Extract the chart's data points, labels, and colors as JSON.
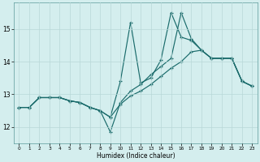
{
  "title": "",
  "xlabel": "Humidex (Indice chaleur)",
  "bg_color": "#d4eeee",
  "line_color": "#1a6b6b",
  "grid_color": "#b8d8d8",
  "x_ticks": [
    0,
    1,
    2,
    3,
    4,
    5,
    6,
    7,
    8,
    9,
    10,
    11,
    12,
    13,
    14,
    15,
    16,
    17,
    18,
    19,
    20,
    21,
    22,
    23
  ],
  "y_ticks": [
    12,
    13,
    14,
    15
  ],
  "xlim": [
    -0.5,
    23.5
  ],
  "ylim": [
    11.5,
    15.8
  ],
  "series": [
    {
      "x": [
        0,
        1,
        2,
        3,
        4,
        5,
        6,
        7,
        8,
        9,
        10,
        11,
        12,
        13,
        14,
        15,
        16,
        17,
        18,
        19,
        20,
        21,
        22,
        23
      ],
      "y": [
        12.6,
        12.6,
        12.9,
        12.9,
        12.9,
        12.8,
        12.75,
        12.6,
        12.5,
        12.3,
        13.4,
        15.2,
        13.35,
        13.5,
        14.05,
        15.5,
        14.75,
        14.65,
        14.35,
        14.1,
        14.1,
        14.1,
        13.4,
        13.25
      ]
    },
    {
      "x": [
        0,
        1,
        2,
        3,
        4,
        5,
        6,
        7,
        8,
        9,
        10,
        11,
        12,
        13,
        14,
        15,
        16,
        17,
        18,
        19,
        20,
        21,
        22,
        23
      ],
      "y": [
        12.6,
        12.6,
        12.9,
        12.9,
        12.9,
        12.8,
        12.75,
        12.6,
        12.5,
        11.85,
        12.75,
        13.1,
        13.3,
        13.6,
        13.85,
        14.1,
        15.5,
        14.7,
        14.35,
        14.1,
        14.1,
        14.1,
        13.4,
        13.25
      ]
    },
    {
      "x": [
        0,
        1,
        2,
        3,
        4,
        5,
        6,
        7,
        8,
        9,
        10,
        11,
        12,
        13,
        14,
        15,
        16,
        17,
        18,
        19,
        20,
        21,
        22,
        23
      ],
      "y": [
        12.6,
        12.6,
        12.9,
        12.9,
        12.9,
        12.8,
        12.75,
        12.6,
        12.5,
        12.3,
        12.7,
        12.95,
        13.1,
        13.3,
        13.55,
        13.8,
        14.0,
        14.3,
        14.35,
        14.1,
        14.1,
        14.1,
        13.4,
        13.25
      ]
    }
  ]
}
